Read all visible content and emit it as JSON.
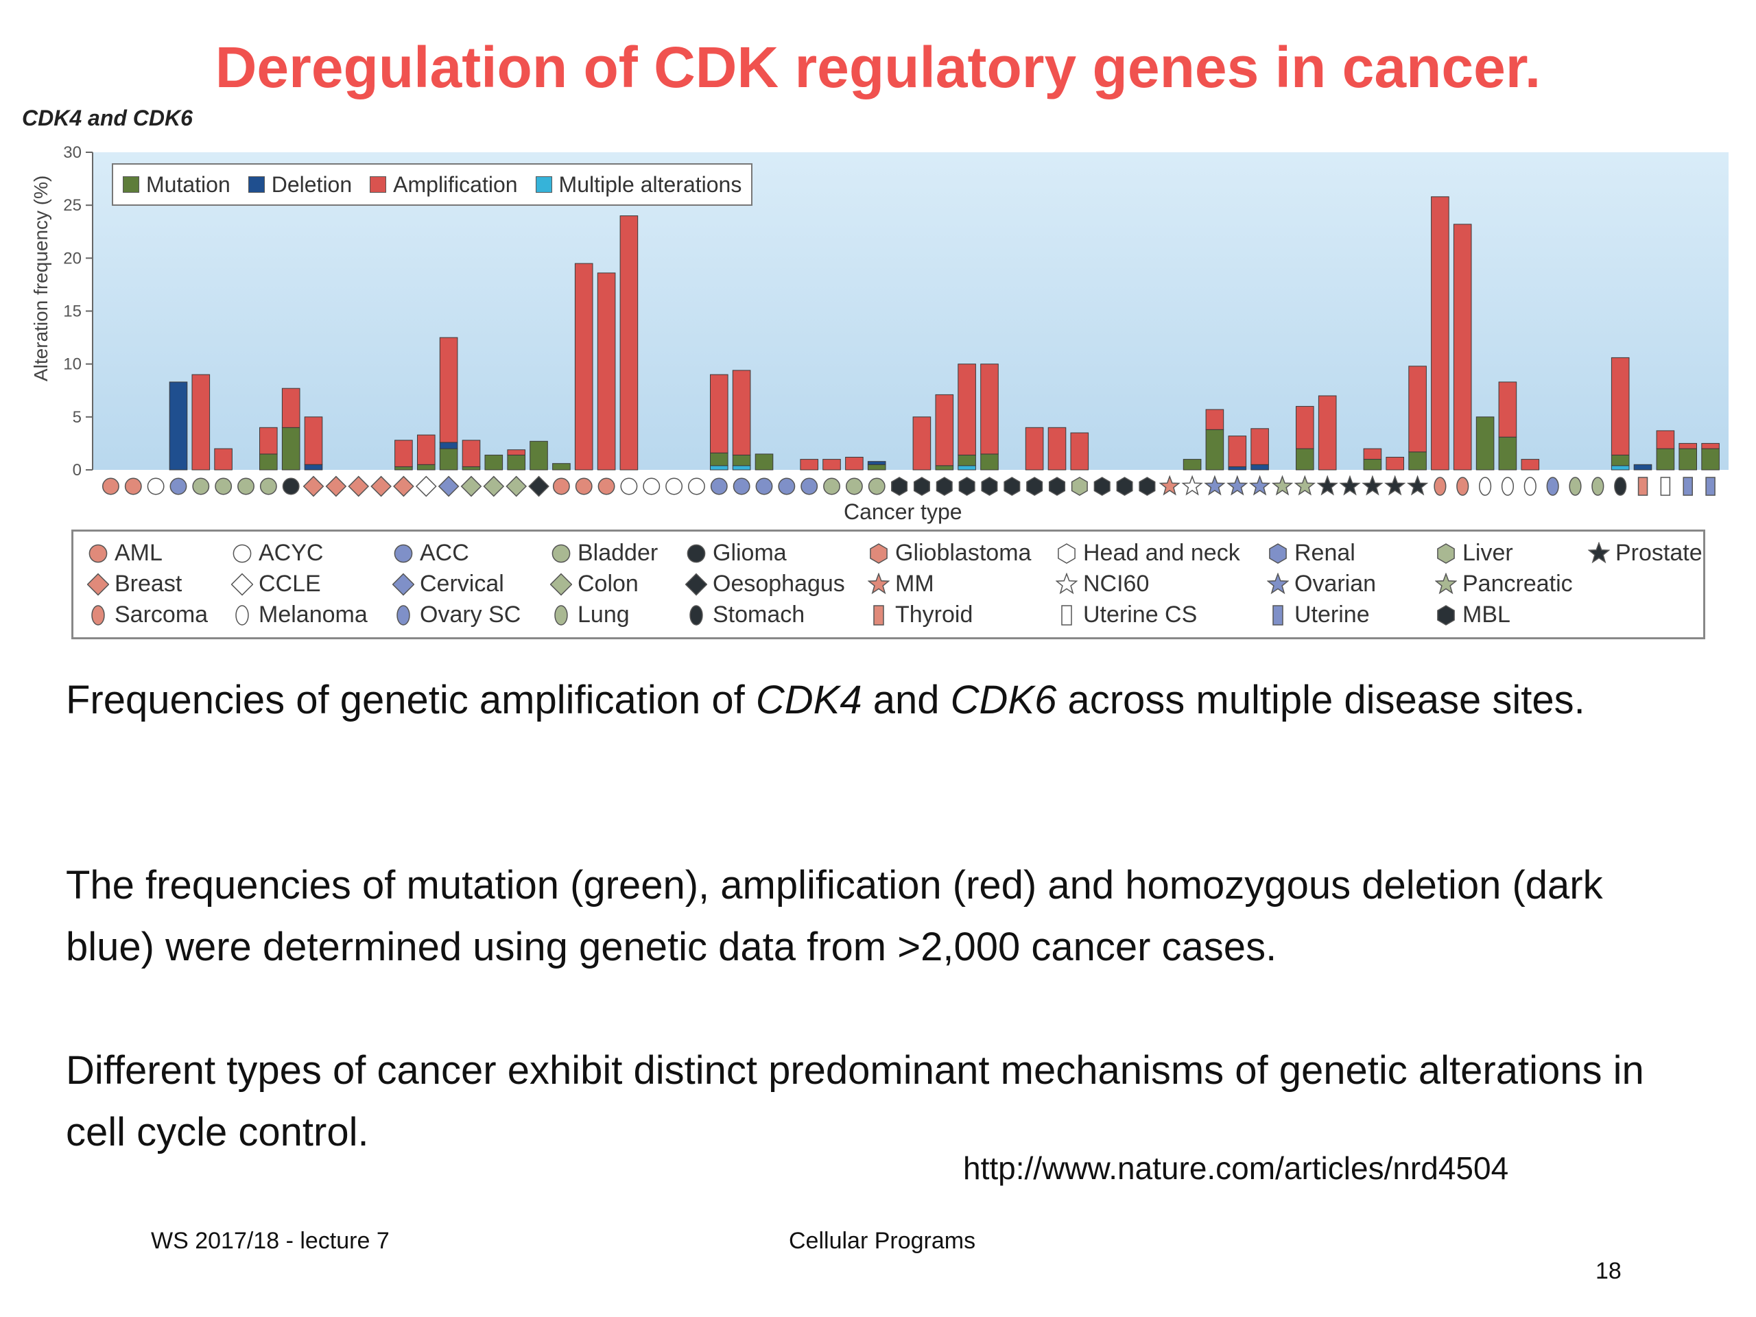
{
  "slide": {
    "title": "Deregulation of CDK regulatory genes in cancer.",
    "figure_label": "CDK4 and CDK6",
    "paragraph1_parts": [
      "Frequencies of genetic amplification of ",
      "CDK4",
      " and ",
      "CDK6",
      " across multiple disease sites."
    ],
    "paragraph2": "The frequencies of mutation (green), amplification (red) and homozygous deletion (dark blue) were determined using genetic data from >2,000 cancer cases.",
    "paragraph3": "Different types of cancer exhibit distinct predominant mechanisms of genetic alterations in cell cycle control.",
    "source_url": "http://www.nature.com/articles/nrd4504",
    "footer_left": "WS 2017/18 - lecture 7",
    "footer_center": "Cellular Programs",
    "page_number": "18"
  },
  "chart_data": {
    "type": "bar",
    "stacked": true,
    "ylabel": "Alteration frequency (%)",
    "xlabel": "Cancer type",
    "ylim": [
      0,
      30
    ],
    "yticks": [
      0,
      5,
      10,
      15,
      20,
      25,
      30
    ],
    "grid": false,
    "legend_position": "top-left",
    "series_legend": [
      {
        "name": "Mutation",
        "color": "#5e7d3a"
      },
      {
        "name": "Deletion",
        "color": "#1f4f8f"
      },
      {
        "name": "Amplification",
        "color": "#d9534f"
      },
      {
        "name": "Multiple alterations",
        "color": "#36b3d9"
      }
    ],
    "bars": [
      [
        0,
        0,
        0,
        0
      ],
      [
        0,
        0,
        0,
        0
      ],
      [
        0,
        0,
        0,
        0
      ],
      [
        0,
        8.3,
        0,
        0
      ],
      [
        0,
        0,
        9,
        0
      ],
      [
        0,
        0,
        2,
        0
      ],
      [
        0,
        0,
        0,
        0
      ],
      [
        1.5,
        0,
        2.5,
        0
      ],
      [
        4,
        0,
        3.7,
        0
      ],
      [
        0,
        0.5,
        4.5,
        0
      ],
      [
        0,
        0,
        0,
        0
      ],
      [
        0,
        0,
        0,
        0
      ],
      [
        0,
        0,
        0,
        0
      ],
      [
        0.3,
        0,
        2.5,
        0
      ],
      [
        0.5,
        0,
        2.8,
        0
      ],
      [
        2,
        0.6,
        9.9,
        0
      ],
      [
        0.3,
        0,
        2.5,
        0
      ],
      [
        1.4,
        0,
        0,
        0
      ],
      [
        1.4,
        0,
        0.5,
        0
      ],
      [
        2.7,
        0,
        0,
        0
      ],
      [
        0.6,
        0,
        0,
        0
      ],
      [
        0,
        0,
        19.5,
        0
      ],
      [
        0,
        0,
        18.6,
        0
      ],
      [
        0,
        0,
        24,
        0
      ],
      [
        0,
        0,
        0,
        0
      ],
      [
        0,
        0,
        0,
        0
      ],
      [
        0,
        0,
        0,
        0
      ],
      [
        1.2,
        0,
        7.4,
        0.4
      ],
      [
        1,
        0,
        8,
        0.4
      ],
      [
        1.5,
        0,
        0,
        0
      ],
      [
        0,
        0,
        0,
        0
      ],
      [
        0,
        0,
        1,
        0
      ],
      [
        0,
        0,
        1,
        0
      ],
      [
        0,
        0,
        1.2,
        0
      ],
      [
        0.5,
        0.3,
        0,
        0
      ],
      [
        0,
        0,
        0,
        0
      ],
      [
        0,
        0,
        5,
        0
      ],
      [
        0.4,
        0,
        6.7,
        0
      ],
      [
        1,
        0,
        8.6,
        0.4
      ],
      [
        1.5,
        0,
        8.5,
        0
      ],
      [
        0,
        0,
        0,
        0
      ],
      [
        0,
        0,
        4,
        0
      ],
      [
        0,
        0,
        4,
        0
      ],
      [
        0,
        0,
        3.5,
        0
      ],
      [
        0,
        0,
        0,
        0
      ],
      [
        0,
        0,
        0,
        0
      ],
      [
        0,
        0,
        0,
        0
      ],
      [
        0,
        0,
        0,
        0
      ],
      [
        1,
        0,
        0,
        0
      ],
      [
        3.8,
        0,
        1.9,
        0
      ],
      [
        0,
        0.3,
        2.9,
        0
      ],
      [
        0,
        0.5,
        3.4,
        0
      ],
      [
        0,
        0,
        0,
        0
      ],
      [
        2,
        0,
        4,
        0
      ],
      [
        0,
        0,
        7,
        0
      ],
      [
        0,
        0,
        0,
        0
      ],
      [
        1,
        0,
        1,
        0
      ],
      [
        0,
        0,
        1.2,
        0
      ],
      [
        1.7,
        0,
        8.1,
        0
      ],
      [
        0,
        0,
        25.8,
        0
      ],
      [
        0,
        0,
        23.2,
        0
      ],
      [
        5,
        0,
        0,
        0
      ],
      [
        3.1,
        0,
        5.2,
        0
      ],
      [
        0,
        0,
        1,
        0
      ],
      [
        0,
        0,
        0,
        0
      ],
      [
        0,
        0,
        0,
        0
      ],
      [
        0,
        0,
        0,
        0
      ],
      [
        1,
        0,
        9.2,
        0.4
      ],
      [
        0,
        0.5,
        0,
        0
      ],
      [
        2,
        0,
        1.7,
        0
      ],
      [
        2,
        0,
        0.5,
        0
      ],
      [
        2,
        0,
        0.5,
        0
      ]
    ],
    "xmarkers": [
      {
        "shape": "circle",
        "fill": "#e08a7a",
        "count": 2
      },
      {
        "shape": "circle",
        "fill": "#ffffff",
        "count": 1
      },
      {
        "shape": "circle",
        "fill": "#7f90c8",
        "count": 1
      },
      {
        "shape": "circle",
        "fill": "#a9b892",
        "count": 4
      },
      {
        "shape": "circle",
        "fill": "#2a3136",
        "count": 1
      },
      {
        "shape": "diamond",
        "fill": "#e08a7a",
        "count": 5
      },
      {
        "shape": "diamond",
        "fill": "#ffffff",
        "count": 1
      },
      {
        "shape": "diamond",
        "fill": "#7f90c8",
        "count": 1
      },
      {
        "shape": "diamond",
        "fill": "#a9b892",
        "count": 3
      },
      {
        "shape": "diamond",
        "fill": "#2a3136",
        "count": 1
      },
      {
        "shape": "circle",
        "fill": "#e08a7a",
        "count": 3
      },
      {
        "shape": "circle",
        "fill": "#ffffff",
        "count": 4
      },
      {
        "shape": "circle",
        "fill": "#7f90c8",
        "count": 5
      },
      {
        "shape": "circle",
        "fill": "#a9b892",
        "count": 3
      },
      {
        "shape": "hexagon",
        "fill": "#2a3136",
        "count": 8
      },
      {
        "shape": "hexagon",
        "fill": "#a9b892",
        "count": 1
      },
      {
        "shape": "hexagon",
        "fill": "#2a3136",
        "count": 3
      },
      {
        "shape": "star",
        "fill": "#e08a7a",
        "count": 1
      },
      {
        "shape": "star",
        "fill": "#ffffff",
        "count": 1
      },
      {
        "shape": "star",
        "fill": "#7f90c8",
        "count": 3
      },
      {
        "shape": "star",
        "fill": "#a9b892",
        "count": 2
      },
      {
        "shape": "star",
        "fill": "#2a3136",
        "count": 5
      },
      {
        "shape": "oval",
        "fill": "#e08a7a",
        "count": 2
      },
      {
        "shape": "oval",
        "fill": "#ffffff",
        "count": 3
      },
      {
        "shape": "oval",
        "fill": "#7f90c8",
        "count": 1
      },
      {
        "shape": "oval",
        "fill": "#a9b892",
        "count": 2
      },
      {
        "shape": "oval",
        "fill": "#2a3136",
        "count": 1
      },
      {
        "shape": "rect",
        "fill": "#e08a7a",
        "count": 1
      },
      {
        "shape": "rect",
        "fill": "#ffffff",
        "count": 1
      },
      {
        "shape": "rect",
        "fill": "#7f90c8",
        "count": 2
      }
    ],
    "cancer_type_legend": [
      {
        "label": "AML",
        "shape": "circle",
        "fill": "#e08a7a"
      },
      {
        "label": "Breast",
        "shape": "diamond",
        "fill": "#e08a7a"
      },
      {
        "label": "Sarcoma",
        "shape": "oval",
        "fill": "#e08a7a"
      },
      {
        "label": "ACYC",
        "shape": "circle",
        "fill": "#ffffff"
      },
      {
        "label": "CCLE",
        "shape": "diamond",
        "fill": "#ffffff"
      },
      {
        "label": "Melanoma",
        "shape": "oval",
        "fill": "#ffffff"
      },
      {
        "label": "ACC",
        "shape": "circle",
        "fill": "#7f90c8"
      },
      {
        "label": "Cervical",
        "shape": "diamond",
        "fill": "#7f90c8"
      },
      {
        "label": "Ovary SC",
        "shape": "oval",
        "fill": "#7f90c8"
      },
      {
        "label": "Bladder",
        "shape": "circle",
        "fill": "#a9b892"
      },
      {
        "label": "Colon",
        "shape": "diamond",
        "fill": "#a9b892"
      },
      {
        "label": "Lung",
        "shape": "oval",
        "fill": "#a9b892"
      },
      {
        "label": "Glioma",
        "shape": "circle",
        "fill": "#2a3136"
      },
      {
        "label": "Oesophagus",
        "shape": "diamond",
        "fill": "#2a3136"
      },
      {
        "label": "Stomach",
        "shape": "oval",
        "fill": "#2a3136"
      },
      {
        "label": "Glioblastoma",
        "shape": "hexagon",
        "fill": "#e08a7a"
      },
      {
        "label": "MM",
        "shape": "star",
        "fill": "#e08a7a"
      },
      {
        "label": "Thyroid",
        "shape": "rect",
        "fill": "#e08a7a"
      },
      {
        "label": "Head and neck",
        "shape": "hexagon",
        "fill": "#ffffff"
      },
      {
        "label": "NCI60",
        "shape": "star",
        "fill": "#ffffff"
      },
      {
        "label": "Uterine CS",
        "shape": "rect",
        "fill": "#ffffff"
      },
      {
        "label": "Renal",
        "shape": "hexagon",
        "fill": "#7f90c8"
      },
      {
        "label": "Ovarian",
        "shape": "star",
        "fill": "#7f90c8"
      },
      {
        "label": "Uterine",
        "shape": "rect",
        "fill": "#7f90c8"
      },
      {
        "label": "Liver",
        "shape": "hexagon",
        "fill": "#a9b892"
      },
      {
        "label": "Pancreatic",
        "shape": "star",
        "fill": "#a9b892"
      },
      {
        "label": "MBL",
        "shape": "hexagon",
        "fill": "#2a3136"
      },
      {
        "label": "Prostate",
        "shape": "star",
        "fill": "#2a3136"
      }
    ]
  }
}
